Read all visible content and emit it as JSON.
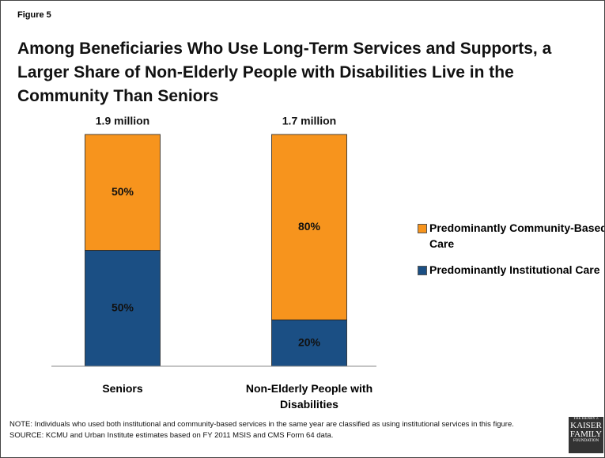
{
  "figure_label": "Figure 5",
  "chart_data": {
    "type": "stacked-bar-100",
    "title": "Among Beneficiaries Who Use Long-Term Services and Supports, a Larger Share of Non-Elderly People with Disabilities Live in the Community Than Seniors",
    "categories": [
      "Seniors",
      "Non-Elderly People with Disabilities"
    ],
    "total_labels": [
      "1.9 million",
      "1.7 million"
    ],
    "series": [
      {
        "name": "Predominantly Institutional Care",
        "color": "#1b4f84",
        "values": [
          50,
          20
        ],
        "value_labels": [
          "50%",
          "20%"
        ]
      },
      {
        "name": "Predominantly Community-Based Care",
        "color": "#f7941d",
        "values": [
          50,
          80
        ],
        "value_labels": [
          "50%",
          "80%"
        ]
      }
    ],
    "legend": "right"
  },
  "notes": [
    "NOTE: Individuals who used both institutional and community-based services in the same year are classified as using institutional services in this figure.",
    "SOURCE: KCMU and Urban Institute estimates based on FY 2011 MSIS and CMS Form 64 data."
  ],
  "logo": [
    "THE HENRY J.",
    "KAISER",
    "FAMILY",
    "FOUNDATION"
  ]
}
